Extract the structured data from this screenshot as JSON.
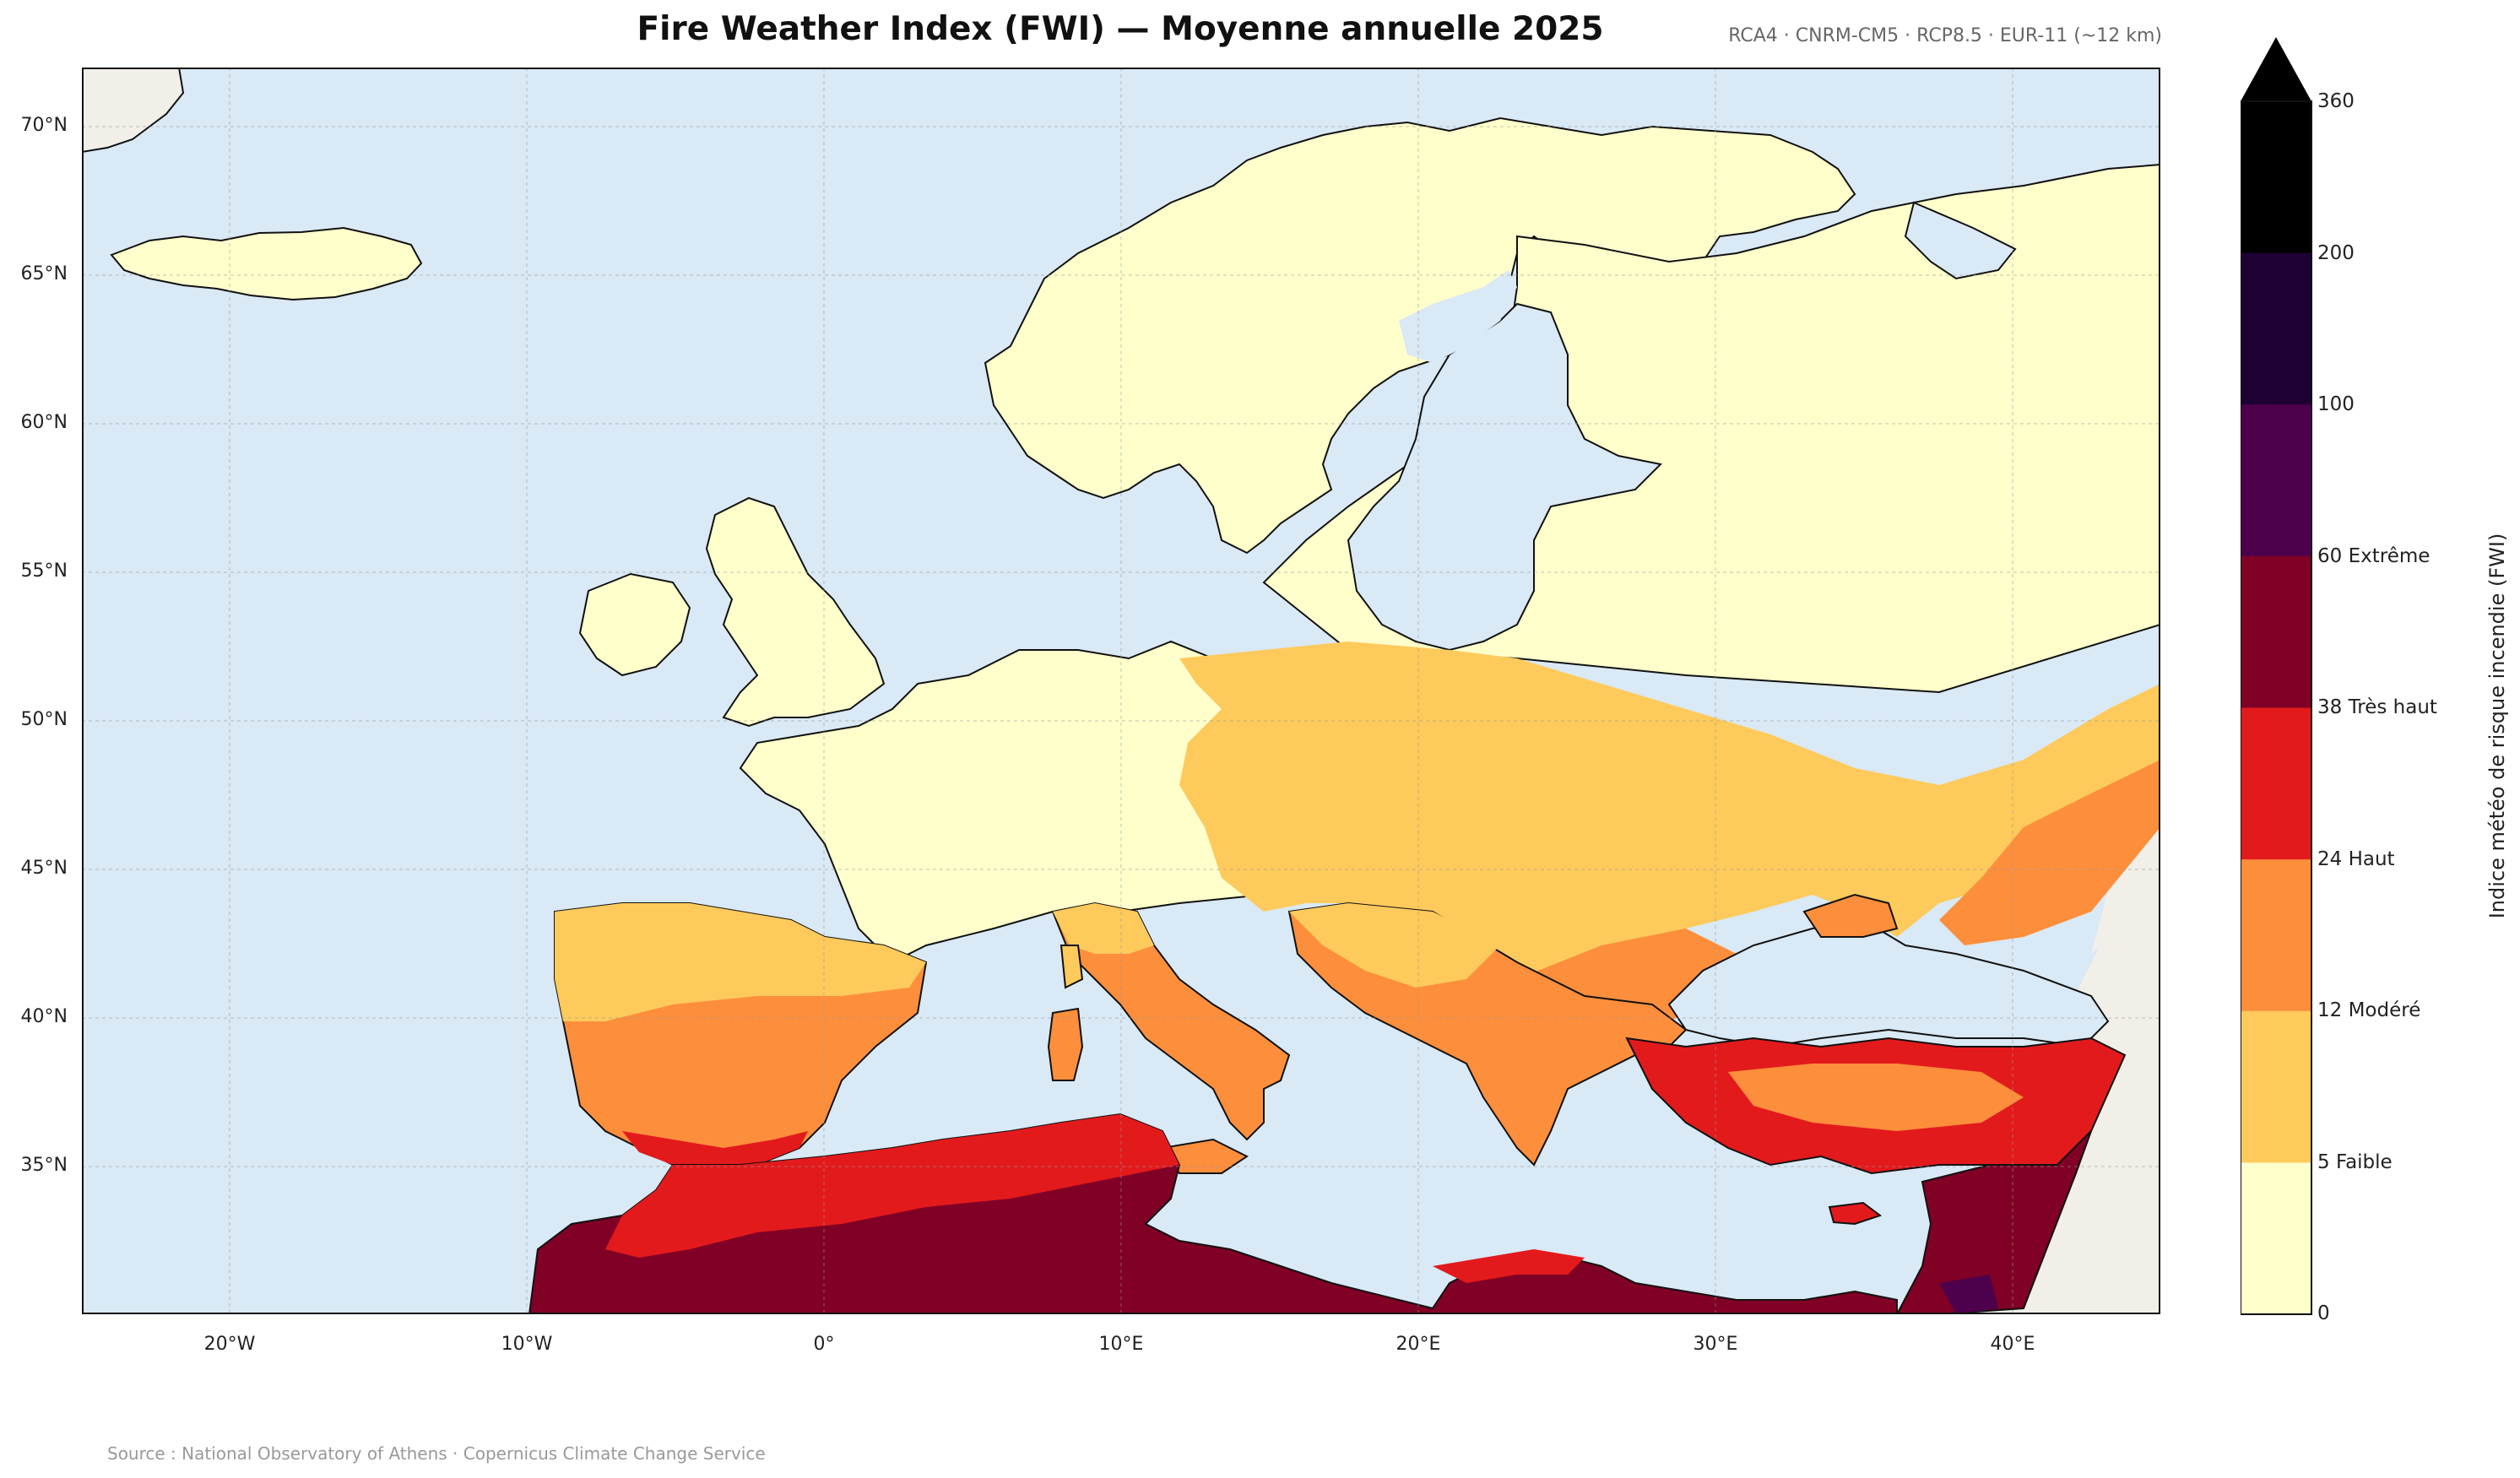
{
  "title": "Fire Weather Index (FWI) — Moyenne annuelle 2025",
  "subtitle": "RCA4 · CNRM-CM5 · RCP8.5 · EUR-11 (~12 km)",
  "source": "Source : National Observatory of Athens · Copernicus Climate Change Service",
  "map": {
    "lon_range": [
      -25,
      45
    ],
    "lat_range": [
      30,
      72
    ],
    "lat_ticks": [
      "70°N",
      "65°N",
      "60°N",
      "55°N",
      "50°N",
      "45°N",
      "40°N",
      "35°N"
    ],
    "lon_ticks": [
      "20°W",
      "10°W",
      "0°",
      "10°E",
      "20°E",
      "30°E",
      "40°E"
    ],
    "sea_color": "#d9e9f5",
    "land_outside_color": "#f2efe9",
    "grid": true
  },
  "colorbar": {
    "label": "Indice météo de risque incendie (FWI)",
    "extend": "max",
    "tick_labels": [
      "0",
      "5  Faible",
      "12  Modéré",
      "24  Haut",
      "38  Très haut",
      "60  Extrême",
      "100",
      "200",
      "360"
    ],
    "classes": [
      {
        "range": [
          0,
          5
        ],
        "color": "#ffffcc"
      },
      {
        "range": [
          5,
          12
        ],
        "color": "#feca5c"
      },
      {
        "range": [
          12,
          24
        ],
        "color": "#fd8e3c"
      },
      {
        "range": [
          24,
          38
        ],
        "color": "#e31a1c"
      },
      {
        "range": [
          38,
          60
        ],
        "color": "#800026"
      },
      {
        "range": [
          60,
          100
        ],
        "color": "#4d004b"
      },
      {
        "range": [
          100,
          200
        ],
        "color": "#1e0033"
      },
      {
        "range": [
          200,
          360
        ],
        "color": "#000000"
      }
    ]
  }
}
